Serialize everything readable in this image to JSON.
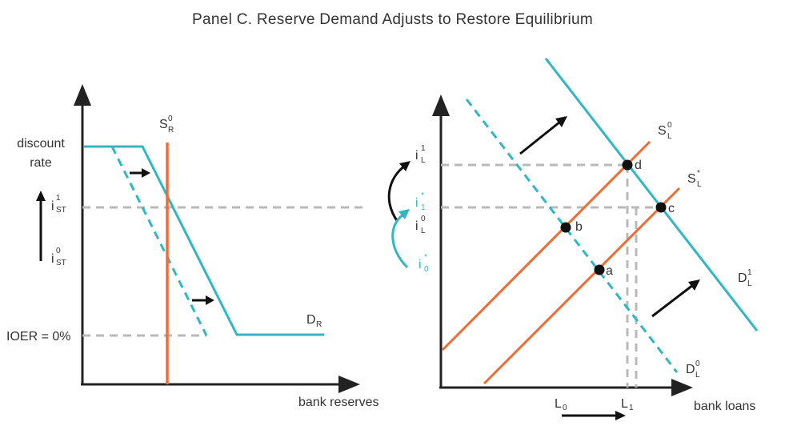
{
  "title": "Panel C. Reserve Demand Adjusts to Restore Equilibrium",
  "colors": {
    "teal": "#2fb7c3",
    "orange": "#f26b33",
    "axis": "#222222",
    "dash": "#b9b9b9"
  },
  "left_panel": {
    "y_labels": {
      "discount_line1": "discount",
      "discount_line2": "rate",
      "ioer": "IOER = 0%"
    },
    "ist1": {
      "base": "i",
      "sup": "1",
      "sub": "ST"
    },
    "ist0": {
      "base": "i",
      "sup": "0",
      "sub": "ST"
    },
    "supply": {
      "base": "S",
      "sup": "0",
      "sub": "R"
    },
    "demand": {
      "base": "D",
      "sub": "R"
    },
    "xlabel": "bank reserves"
  },
  "right_panel": {
    "il1": {
      "base": "i",
      "sup": "1",
      "sub": "L"
    },
    "i1star": {
      "base": "i",
      "sup": "*",
      "sub": "1"
    },
    "il0": {
      "base": "i",
      "sup": "0",
      "sub": "L"
    },
    "i0star": {
      "base": "i",
      "sup": "*",
      "sub": "0"
    },
    "sl0": {
      "base": "S",
      "sup": "0",
      "sub": "L"
    },
    "slstar": {
      "base": "S",
      "sup": "*",
      "sub": "L"
    },
    "dl1": {
      "base": "D",
      "sup": "1",
      "sub": "L"
    },
    "dl0": {
      "base": "D",
      "sup": "0",
      "sub": "L"
    },
    "points": {
      "a": "a",
      "b": "b",
      "c": "c",
      "d": "d"
    },
    "l0": {
      "base": "L",
      "sub": "0"
    },
    "l1": {
      "base": "L",
      "sub": "1"
    },
    "xlabel": "bank loans"
  }
}
